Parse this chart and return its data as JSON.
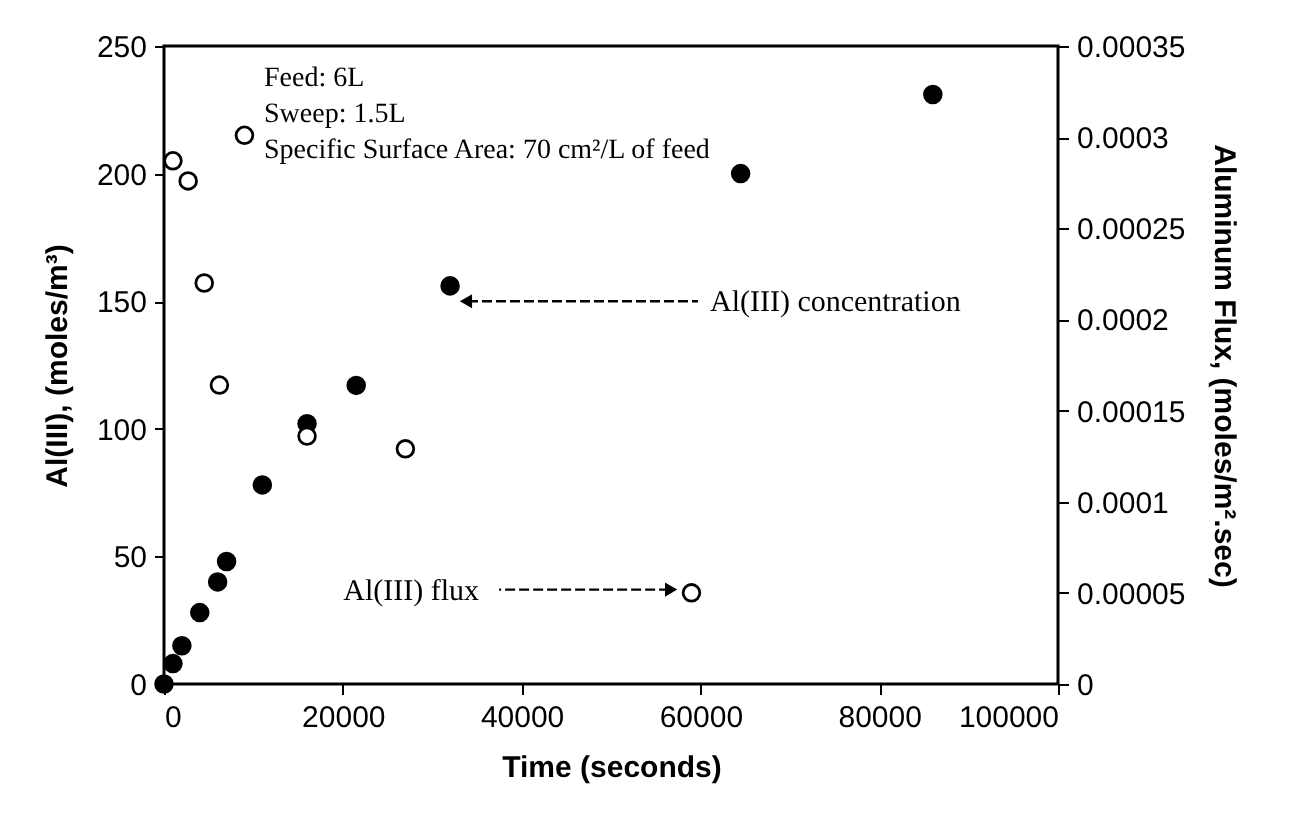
{
  "chart_data": {
    "type": "scatter",
    "xlabel": "Time (seconds)",
    "ylabel": "Al(III), (moles/m³)",
    "y2label": "Aluminum Flux, (moles/m².sec)",
    "xlim": [
      0,
      100000
    ],
    "xticks": [
      0,
      20000,
      40000,
      60000,
      80000,
      100000
    ],
    "ylim": [
      0,
      250
    ],
    "yticks": [
      0,
      50,
      100,
      150,
      200,
      250
    ],
    "y2lim": [
      0,
      0.00035
    ],
    "y2ticks": [
      0,
      {
        "value": 5e-05,
        "label": "0.00005"
      },
      0.0001,
      0.00015,
      0.0002,
      0.00025,
      0.0003,
      0.00035
    ],
    "grid": false,
    "marker": "circle",
    "series": [
      {
        "color": "#000000",
        "x": [
          0,
          1000,
          2000,
          4000,
          6000,
          7000,
          11000,
          16000,
          21500,
          32000,
          64500,
          86000
        ],
        "values": [
          0,
          8,
          15,
          28,
          40,
          48,
          78,
          102,
          117,
          156,
          200,
          231
        ]
      },
      {
        "color": "#000000",
        "axis": "y2",
        "x": [
          1000,
          2700,
          4500,
          6200,
          9000,
          16000,
          27000,
          59000
        ],
        "values": [
          0.000287,
          0.000276,
          0.00022,
          0.000164,
          0.000301,
          0.000136,
          0.000129,
          5e-05
        ]
      }
    ],
    "annotations": [
      "Feed: 6L",
      "Sweep: 1.5L",
      "Specific Surface Area: 70 cm²/L of feed",
      {
        "text": "Al(III) concentration",
        "x": 34000,
        "y": 150
      },
      {
        "text": "Al(III) flux",
        "x": 56500,
        "y": 37
      }
    ]
  }
}
